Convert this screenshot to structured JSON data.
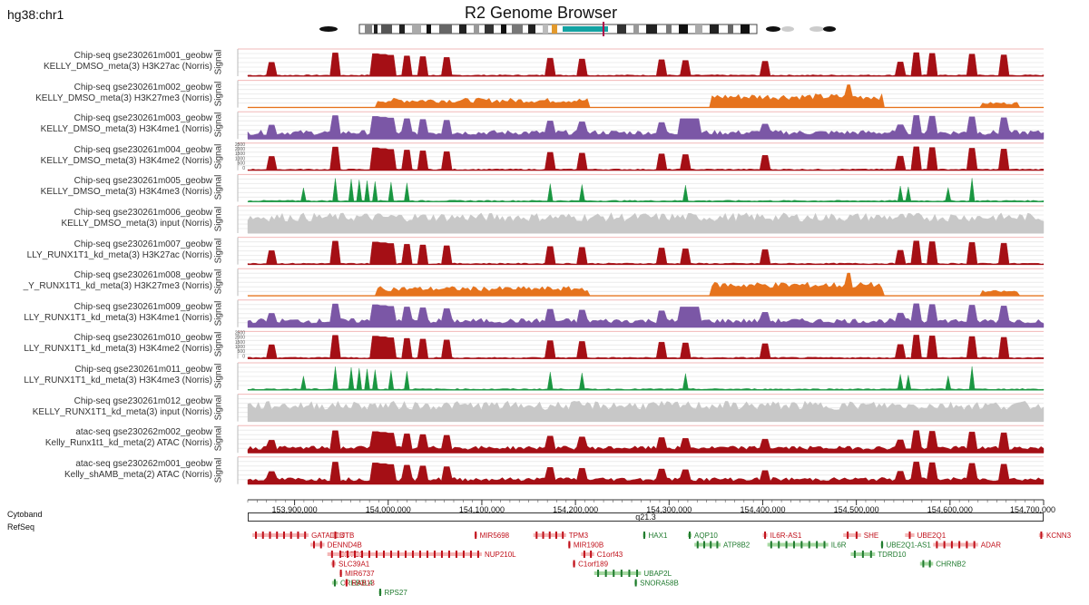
{
  "genome": "hg38:chr1",
  "title": "R2 Genome Browser",
  "signal_label": "Signal",
  "tracks": [
    {
      "line1": "Chip-seq gse230261m001_geobw",
      "line2": "KELLY_DMSO_meta(3) H3K27ac  (Norris)",
      "color": "#a50f15",
      "kind": "peaks"
    },
    {
      "line1": "Chip-seq gse230261m002_geobw",
      "line2": "KELLY_DMSO_meta(3) H3K27me3  (Norris)",
      "color": "#e6731d",
      "kind": "broad"
    },
    {
      "line1": "Chip-seq gse230261m003_geobw",
      "line2": "KELLY_DMSO_meta(3) H3K4me1  (Norris)",
      "color": "#7b57a6",
      "kind": "medium"
    },
    {
      "line1": "Chip-seq gse230261m004_geobw",
      "line2": "KELLY_DMSO_meta(3) H3K4me2  (Norris)",
      "color": "#a50f15",
      "kind": "peaks",
      "ticks": [
        "2500",
        "2000",
        "1500",
        "1000",
        "500",
        "0"
      ]
    },
    {
      "line1": "Chip-seq gse230261m005_geobw",
      "line2": "KELLY_DMSO_meta(3) H3K4me3  (Norris)",
      "color": "#1a9641",
      "kind": "sharp"
    },
    {
      "line1": "Chip-seq gse230261m006_geobw",
      "line2": "KELLY_DMSO_meta(3) input  (Norris)",
      "color": "#c8c8c8",
      "kind": "input"
    },
    {
      "line1": "Chip-seq gse230261m007_geobw",
      "line2": "LLY_RUNX1T1_kd_meta(3) H3K27ac  (Norris)",
      "color": "#a50f15",
      "kind": "peaks"
    },
    {
      "line1": "Chip-seq gse230261m008_geobw",
      "line2": "_Y_RUNX1T1_kd_meta(3) H3K27me3  (Norris)",
      "color": "#e6731d",
      "kind": "broad"
    },
    {
      "line1": "Chip-seq gse230261m009_geobw",
      "line2": "LLY_RUNX1T1_kd_meta(3) H3K4me1  (Norris)",
      "color": "#7b57a6",
      "kind": "medium"
    },
    {
      "line1": "Chip-seq gse230261m010_geobw",
      "line2": "LLY_RUNX1T1_kd_meta(3) H3K4me2  (Norris)",
      "color": "#a50f15",
      "kind": "peaks",
      "ticks": [
        "2500",
        "2000",
        "1500",
        "1000",
        "500",
        "0"
      ]
    },
    {
      "line1": "Chip-seq gse230261m011_geobw",
      "line2": "LLY_RUNX1T1_kd_meta(3) H3K4me3  (Norris)",
      "color": "#1a9641",
      "kind": "sharp"
    },
    {
      "line1": "Chip-seq gse230261m012_geobw",
      "line2": "KELLY_RUNX1T1_kd_meta(3) input  (Norris)",
      "color": "#c8c8c8",
      "kind": "input"
    },
    {
      "line1": "atac-seq gse230262m002_geobw",
      "line2": "Kelly_Runx1t1_kd_meta(2) ATAC  (Norris)",
      "color": "#a50f15",
      "kind": "atac"
    },
    {
      "line1": "atac-seq gse230262m001_geobw",
      "line2": "Kelly_shAMB_meta(2) ATAC  (Norris)",
      "color": "#a50f15",
      "kind": "atac"
    }
  ],
  "axis": {
    "start": 153850000,
    "end": 154700000,
    "tick_labels": [
      "153,900,000",
      "154,000,000",
      "154,100,000",
      "154,200,000",
      "154,300,000",
      "154,400,000",
      "154,500,000",
      "154,600,000",
      "154,700,000"
    ],
    "tick_values": [
      153900000,
      154000000,
      154100000,
      154200000,
      154300000,
      154400000,
      154500000,
      154600000,
      154700000
    ]
  },
  "cytoband_label": "Cytoband",
  "cytoband_name": "q21.3",
  "refseq_label": "RefSeq",
  "genes": [
    {
      "name": "GATAD2B",
      "row": 0,
      "start": 153855000,
      "end": 153915000,
      "strand": "red"
    },
    {
      "name": "JTB",
      "row": 0,
      "start": 153940000,
      "end": 153947000,
      "strand": "red"
    },
    {
      "name": "MIR5698",
      "row": 0,
      "start": 154092000,
      "end": 154093000,
      "strand": "red"
    },
    {
      "name": "TPM3",
      "row": 0,
      "start": 154155000,
      "end": 154190000,
      "strand": "red"
    },
    {
      "name": "HAX1",
      "row": 0,
      "start": 154272000,
      "end": 154275000,
      "strand": "green"
    },
    {
      "name": "AQP10",
      "row": 0,
      "start": 154320000,
      "end": 154324000,
      "strand": "green"
    },
    {
      "name": "IL6R-AS1",
      "row": 0,
      "start": 154400000,
      "end": 154405000,
      "strand": "red"
    },
    {
      "name": "SHE",
      "row": 0,
      "start": 154486000,
      "end": 154505000,
      "strand": "red"
    },
    {
      "name": "UBE2Q1",
      "row": 0,
      "start": 154552000,
      "end": 154562000,
      "strand": "red"
    },
    {
      "name": "KCNN3",
      "row": 0,
      "start": 154695000,
      "end": 154700000,
      "strand": "red"
    },
    {
      "name": "DENND4B",
      "row": 1,
      "start": 153917000,
      "end": 153932000,
      "strand": "red"
    },
    {
      "name": "MIR190B",
      "row": 1,
      "start": 154192000,
      "end": 154193000,
      "strand": "red"
    },
    {
      "name": "ATP8B2",
      "row": 1,
      "start": 154327000,
      "end": 154355000,
      "strand": "green"
    },
    {
      "name": "IL6R",
      "row": 1,
      "start": 154405000,
      "end": 154470000,
      "strand": "green"
    },
    {
      "name": "UBE2Q1-AS1",
      "row": 1,
      "start": 154526000,
      "end": 154528000,
      "strand": "green"
    },
    {
      "name": "ADAR",
      "row": 1,
      "start": 154582000,
      "end": 154630000,
      "strand": "red"
    },
    {
      "name": "CRTC2",
      "row": 2,
      "start": 153935000,
      "end": 153945000,
      "strand": "red"
    },
    {
      "name": "NUP210L",
      "row": 2,
      "start": 153945000,
      "end": 154100000,
      "strand": "red"
    },
    {
      "name": "C1orf43",
      "row": 2,
      "start": 154206000,
      "end": 154220000,
      "strand": "red"
    },
    {
      "name": "TDRD10",
      "row": 2,
      "start": 154494000,
      "end": 154520000,
      "strand": "green"
    },
    {
      "name": "SLC39A1",
      "row": 3,
      "start": 153939000,
      "end": 153944000,
      "strand": "red"
    },
    {
      "name": "C1orf189",
      "row": 3,
      "start": 154197000,
      "end": 154200000,
      "strand": "red"
    },
    {
      "name": "CHRNB2",
      "row": 3,
      "start": 154568000,
      "end": 154582000,
      "strand": "green"
    },
    {
      "name": "MIR6737",
      "row": 4,
      "start": 153948000,
      "end": 153949000,
      "strand": "red"
    },
    {
      "name": "UBAP2L",
      "row": 4,
      "start": 154220000,
      "end": 154270000,
      "strand": "green"
    },
    {
      "name": "CREB3L4",
      "row": 5,
      "start": 153940000,
      "end": 153946000,
      "strand": "green"
    },
    {
      "name": "RAB13",
      "row": 5,
      "start": 153953000,
      "end": 153958000,
      "strand": "red"
    },
    {
      "name": "SNORA58B",
      "row": 5,
      "start": 154263000,
      "end": 154264000,
      "strand": "green"
    },
    {
      "name": "RPS27",
      "row": 6,
      "start": 153990000,
      "end": 153992000,
      "strand": "green"
    }
  ]
}
